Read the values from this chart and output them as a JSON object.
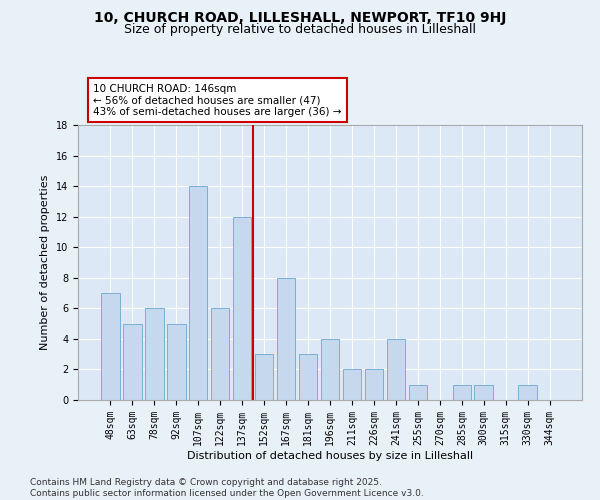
{
  "title_line1": "10, CHURCH ROAD, LILLESHALL, NEWPORT, TF10 9HJ",
  "title_line2": "Size of property relative to detached houses in Lilleshall",
  "xlabel": "Distribution of detached houses by size in Lilleshall",
  "ylabel": "Number of detached properties",
  "bar_labels": [
    "48sqm",
    "63sqm",
    "78sqm",
    "92sqm",
    "107sqm",
    "122sqm",
    "137sqm",
    "152sqm",
    "167sqm",
    "181sqm",
    "196sqm",
    "211sqm",
    "226sqm",
    "241sqm",
    "255sqm",
    "270sqm",
    "285sqm",
    "300sqm",
    "315sqm",
    "330sqm",
    "344sqm"
  ],
  "bar_values": [
    7,
    5,
    6,
    5,
    14,
    6,
    12,
    3,
    8,
    3,
    4,
    2,
    2,
    4,
    1,
    0,
    1,
    1,
    0,
    1,
    0
  ],
  "bar_color": "#c5d8ed",
  "bar_edgecolor": "#7aafd4",
  "vline_x": 6.5,
  "vline_color": "#cc0000",
  "annotation_title": "10 CHURCH ROAD: 146sqm",
  "annotation_line1": "← 56% of detached houses are smaller (47)",
  "annotation_line2": "43% of semi-detached houses are larger (36) →",
  "annotation_box_color": "#ffffff",
  "annotation_box_edgecolor": "#cc0000",
  "ylim": [
    0,
    18
  ],
  "yticks": [
    0,
    2,
    4,
    6,
    8,
    10,
    12,
    14,
    16,
    18
  ],
  "background_color": "#e8f0f8",
  "plot_bg_color": "#dce8f5",
  "footer": "Contains HM Land Registry data © Crown copyright and database right 2025.\nContains public sector information licensed under the Open Government Licence v3.0.",
  "title_fontsize": 10,
  "subtitle_fontsize": 9,
  "axis_label_fontsize": 8,
  "tick_fontsize": 7,
  "annotation_fontsize": 7.5,
  "footer_fontsize": 6.5
}
